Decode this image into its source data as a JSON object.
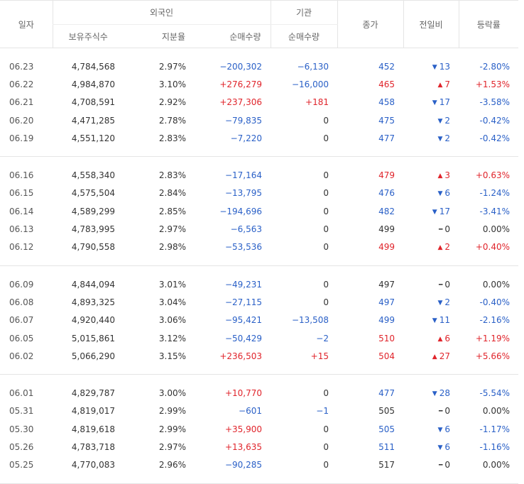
{
  "header": {
    "date": "일자",
    "foreign": "외국인",
    "institution": "기관",
    "close": "종가",
    "change": "전일비",
    "rate": "등락률",
    "holdings": "보유주식수",
    "share": "지분율",
    "foreign_net": "순매수량",
    "inst_net": "순매수량"
  },
  "groups": [
    [
      {
        "date": "06.23",
        "holdings": "4,784,568",
        "share": "2.97%",
        "fnet": "−200,302",
        "fnet_dir": "down",
        "inet": "−6,130",
        "inet_dir": "down",
        "close": "452",
        "dir": "down",
        "arrow": "▼",
        "change": "13",
        "rate": "-2.80%"
      },
      {
        "date": "06.22",
        "holdings": "4,984,870",
        "share": "3.10%",
        "fnet": "+276,279",
        "fnet_dir": "up",
        "inet": "−16,000",
        "inet_dir": "down",
        "close": "465",
        "dir": "up",
        "arrow": "▲",
        "change": "7",
        "rate": "+1.53%"
      },
      {
        "date": "06.21",
        "holdings": "4,708,591",
        "share": "2.92%",
        "fnet": "+237,306",
        "fnet_dir": "up",
        "inet": "+181",
        "inet_dir": "up",
        "close": "458",
        "dir": "down",
        "arrow": "▼",
        "change": "17",
        "rate": "-3.58%"
      },
      {
        "date": "06.20",
        "holdings": "4,471,285",
        "share": "2.78%",
        "fnet": "−79,835",
        "fnet_dir": "down",
        "inet": "0",
        "inet_dir": "flat",
        "close": "475",
        "dir": "down",
        "arrow": "▼",
        "change": "2",
        "rate": "-0.42%"
      },
      {
        "date": "06.19",
        "holdings": "4,551,120",
        "share": "2.83%",
        "fnet": "−7,220",
        "fnet_dir": "down",
        "inet": "0",
        "inet_dir": "flat",
        "close": "477",
        "dir": "down",
        "arrow": "▼",
        "change": "2",
        "rate": "-0.42%"
      }
    ],
    [
      {
        "date": "06.16",
        "holdings": "4,558,340",
        "share": "2.83%",
        "fnet": "−17,164",
        "fnet_dir": "down",
        "inet": "0",
        "inet_dir": "flat",
        "close": "479",
        "dir": "up",
        "arrow": "▲",
        "change": "3",
        "rate": "+0.63%"
      },
      {
        "date": "06.15",
        "holdings": "4,575,504",
        "share": "2.84%",
        "fnet": "−13,795",
        "fnet_dir": "down",
        "inet": "0",
        "inet_dir": "flat",
        "close": "476",
        "dir": "down",
        "arrow": "▼",
        "change": "6",
        "rate": "-1.24%"
      },
      {
        "date": "06.14",
        "holdings": "4,589,299",
        "share": "2.85%",
        "fnet": "−194,696",
        "fnet_dir": "down",
        "inet": "0",
        "inet_dir": "flat",
        "close": "482",
        "dir": "down",
        "arrow": "▼",
        "change": "17",
        "rate": "-3.41%"
      },
      {
        "date": "06.13",
        "holdings": "4,783,995",
        "share": "2.97%",
        "fnet": "−6,563",
        "fnet_dir": "down",
        "inet": "0",
        "inet_dir": "flat",
        "close": "499",
        "dir": "flat",
        "arrow": "━",
        "change": "0",
        "rate": "0.00%"
      },
      {
        "date": "06.12",
        "holdings": "4,790,558",
        "share": "2.98%",
        "fnet": "−53,536",
        "fnet_dir": "down",
        "inet": "0",
        "inet_dir": "flat",
        "close": "499",
        "dir": "up",
        "arrow": "▲",
        "change": "2",
        "rate": "+0.40%"
      }
    ],
    [
      {
        "date": "06.09",
        "holdings": "4,844,094",
        "share": "3.01%",
        "fnet": "−49,231",
        "fnet_dir": "down",
        "inet": "0",
        "inet_dir": "flat",
        "close": "497",
        "dir": "flat",
        "arrow": "━",
        "change": "0",
        "rate": "0.00%"
      },
      {
        "date": "06.08",
        "holdings": "4,893,325",
        "share": "3.04%",
        "fnet": "−27,115",
        "fnet_dir": "down",
        "inet": "0",
        "inet_dir": "flat",
        "close": "497",
        "dir": "down",
        "arrow": "▼",
        "change": "2",
        "rate": "-0.40%"
      },
      {
        "date": "06.07",
        "holdings": "4,920,440",
        "share": "3.06%",
        "fnet": "−95,421",
        "fnet_dir": "down",
        "inet": "−13,508",
        "inet_dir": "down",
        "close": "499",
        "dir": "down",
        "arrow": "▼",
        "change": "11",
        "rate": "-2.16%"
      },
      {
        "date": "06.05",
        "holdings": "5,015,861",
        "share": "3.12%",
        "fnet": "−50,429",
        "fnet_dir": "down",
        "inet": "−2",
        "inet_dir": "down",
        "close": "510",
        "dir": "up",
        "arrow": "▲",
        "change": "6",
        "rate": "+1.19%"
      },
      {
        "date": "06.02",
        "holdings": "5,066,290",
        "share": "3.15%",
        "fnet": "+236,503",
        "fnet_dir": "up",
        "inet": "+15",
        "inet_dir": "up",
        "close": "504",
        "dir": "up",
        "arrow": "▲",
        "change": "27",
        "rate": "+5.66%"
      }
    ],
    [
      {
        "date": "06.01",
        "holdings": "4,829,787",
        "share": "3.00%",
        "fnet": "+10,770",
        "fnet_dir": "up",
        "inet": "0",
        "inet_dir": "flat",
        "close": "477",
        "dir": "down",
        "arrow": "▼",
        "change": "28",
        "rate": "-5.54%"
      },
      {
        "date": "05.31",
        "holdings": "4,819,017",
        "share": "2.99%",
        "fnet": "−601",
        "fnet_dir": "down",
        "inet": "−1",
        "inet_dir": "down",
        "close": "505",
        "dir": "flat",
        "arrow": "━",
        "change": "0",
        "rate": "0.00%"
      },
      {
        "date": "05.30",
        "holdings": "4,819,618",
        "share": "2.99%",
        "fnet": "+35,900",
        "fnet_dir": "up",
        "inet": "0",
        "inet_dir": "flat",
        "close": "505",
        "dir": "down",
        "arrow": "▼",
        "change": "6",
        "rate": "-1.17%"
      },
      {
        "date": "05.26",
        "holdings": "4,783,718",
        "share": "2.97%",
        "fnet": "+13,635",
        "fnet_dir": "up",
        "inet": "0",
        "inet_dir": "flat",
        "close": "511",
        "dir": "down",
        "arrow": "▼",
        "change": "6",
        "rate": "-1.16%"
      },
      {
        "date": "05.25",
        "holdings": "4,770,083",
        "share": "2.96%",
        "fnet": "−90,285",
        "fnet_dir": "down",
        "inet": "0",
        "inet_dir": "flat",
        "close": "517",
        "dir": "flat",
        "arrow": "━",
        "change": "0",
        "rate": "0.00%"
      }
    ]
  ],
  "colors": {
    "up": "#e0242b",
    "down": "#2a60c7",
    "flat": "#333333"
  }
}
